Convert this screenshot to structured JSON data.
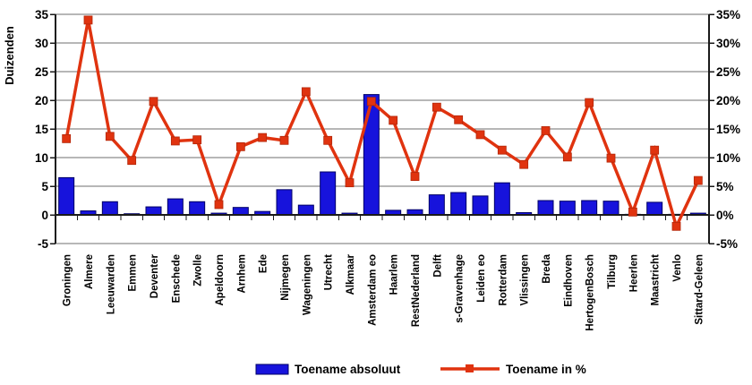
{
  "chart_data": {
    "type": "combo-bar-line",
    "title": "",
    "categories": [
      "Groningen",
      "Almere",
      "Leeuwarden",
      "Emmen",
      "Deventer",
      "Enschede",
      "Zwolle",
      "Apeldoorn",
      "Arnhem",
      "Ede",
      "Nijmegen",
      "Wageningen",
      "Utrecht",
      "Alkmaar",
      "Amsterdam eo",
      "Haarlem",
      "RestNederland",
      "Delft",
      "s-Gravenhage",
      "Leiden eo",
      "Rotterdam",
      "Vlissingen",
      "Breda",
      "Eindhoven",
      "HertogenBosch",
      "Tilburg",
      "Heerlen",
      "Maastricht",
      "Venlo",
      "Sittard-Geleen"
    ],
    "series": [
      {
        "name": "Toename absoluut",
        "type": "bar",
        "axis": "left",
        "color": "#1713dc",
        "border_color": "#000066",
        "values": [
          6.5,
          0.7,
          2.3,
          0.2,
          1.4,
          2.8,
          2.3,
          0.3,
          1.3,
          0.6,
          4.4,
          1.7,
          7.5,
          0.3,
          21.0,
          0.8,
          0.9,
          3.5,
          3.9,
          3.3,
          5.6,
          0.4,
          2.5,
          2.4,
          2.5,
          2.4,
          0.1,
          2.2,
          0.1,
          0.3
        ]
      },
      {
        "name": "Toename in %",
        "type": "line",
        "axis": "right",
        "color": "#e0330f",
        "marker": "square",
        "values": [
          13.3,
          34.0,
          13.7,
          9.5,
          19.8,
          12.9,
          13.1,
          1.8,
          11.9,
          13.5,
          13.0,
          21.5,
          13.0,
          5.6,
          19.8,
          16.5,
          6.7,
          18.8,
          16.6,
          14.0,
          11.3,
          8.8,
          14.7,
          10.1,
          19.6,
          9.9,
          0.5,
          11.3,
          -2.0,
          6.0
        ]
      }
    ],
    "left_axis": {
      "label": "Duizenden",
      "min": -5,
      "max": 35,
      "step": 5,
      "tick_labels": [
        "35",
        "30",
        "25",
        "20",
        "15",
        "10",
        "5",
        "0",
        "-5"
      ]
    },
    "right_axis": {
      "label": "",
      "min": -5,
      "max": 35,
      "step": 5,
      "tick_labels": [
        "35%",
        "30%",
        "25%",
        "20%",
        "15%",
        "10%",
        "5%",
        "0%",
        "-5%"
      ]
    },
    "legend": {
      "position": "bottom",
      "items": [
        "Toename absoluut",
        "Toename in %"
      ]
    },
    "grid": true,
    "colors": {
      "grid": "#6f6f6f",
      "axis": "#1a1a1a",
      "text": "#000000",
      "background": "#ffffff"
    }
  }
}
